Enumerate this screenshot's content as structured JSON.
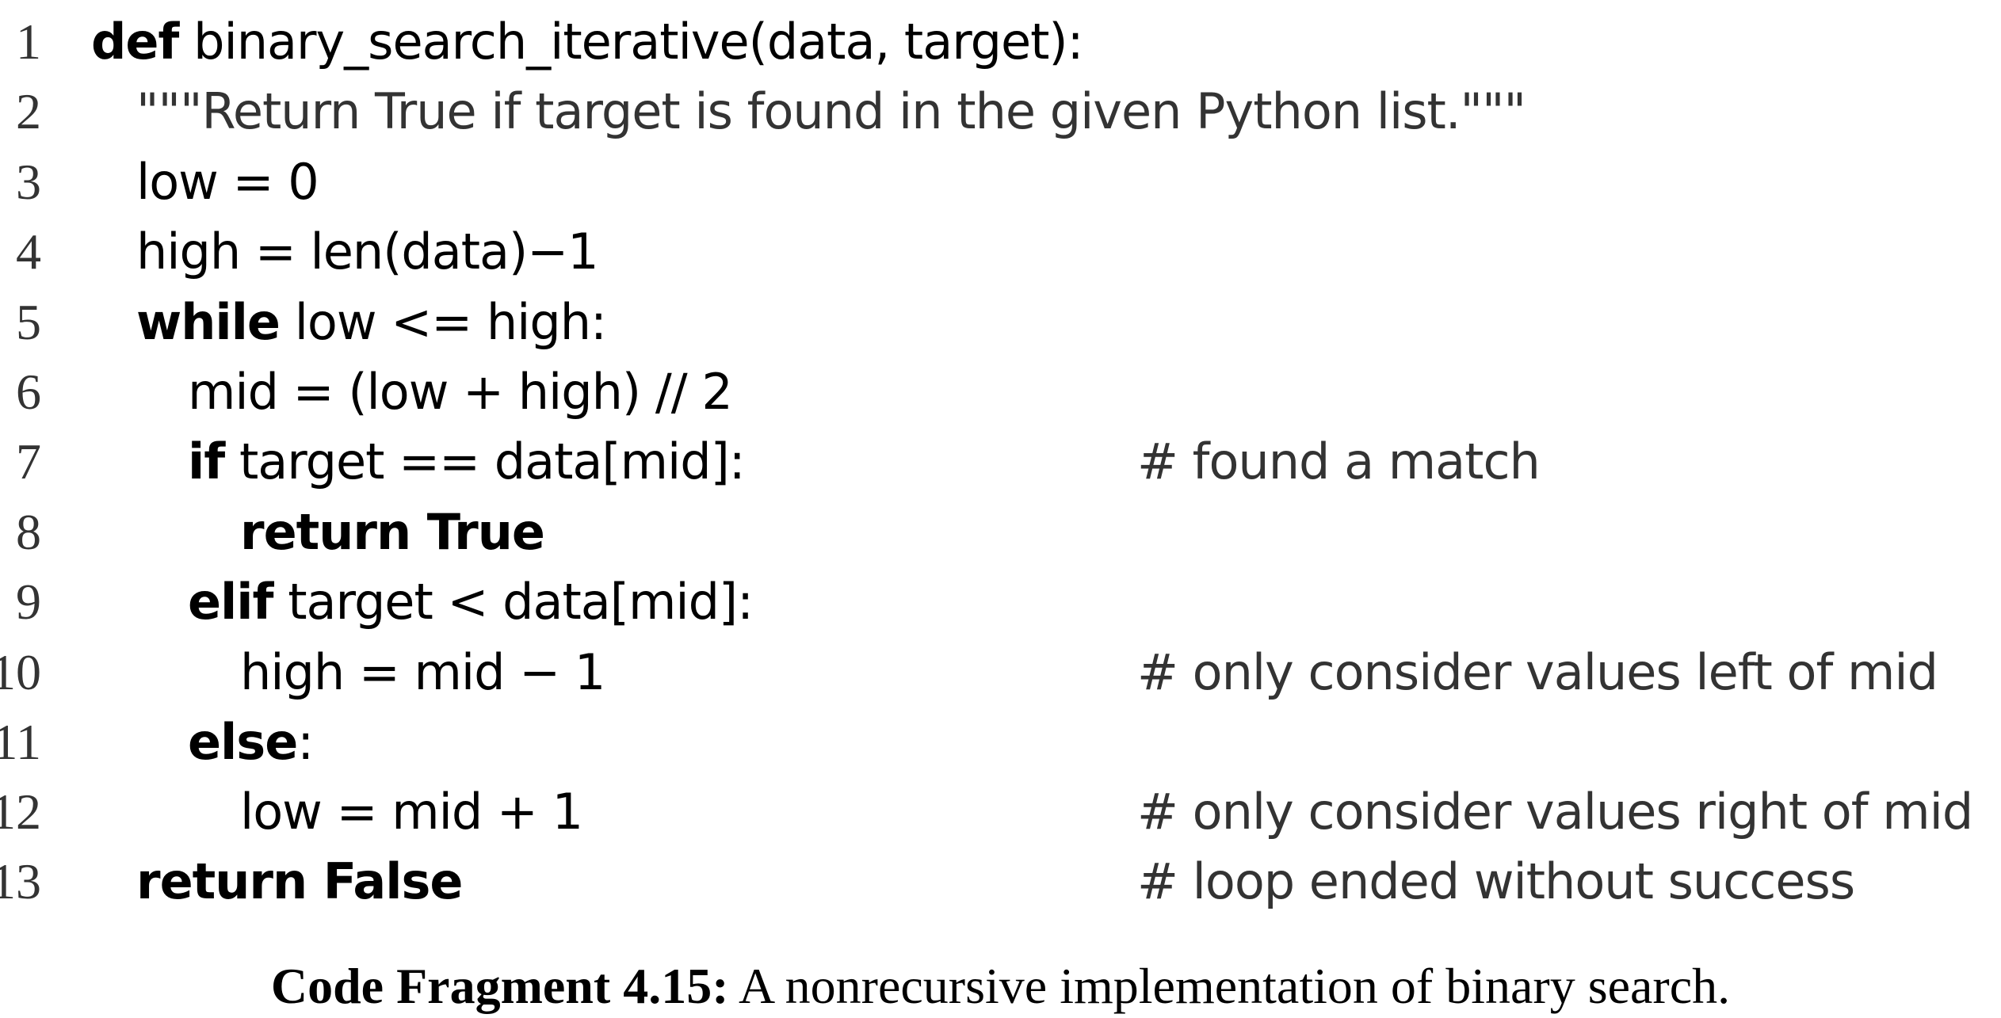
{
  "code": {
    "lines": [
      {
        "number": "1",
        "keyword": "def",
        "text": " binary_search_iterative(data, target):",
        "comment": ""
      },
      {
        "number": "2",
        "keyword": "",
        "text": "\"\"\"Return True if target is found in the given Python list.\"\"\"",
        "comment": ""
      },
      {
        "number": "3",
        "keyword": "",
        "text": "low = 0",
        "comment": ""
      },
      {
        "number": "4",
        "keyword": "",
        "text": "high = len(data)−1",
        "comment": ""
      },
      {
        "number": "5",
        "keyword": "while",
        "text": " low <= high:",
        "comment": ""
      },
      {
        "number": "6",
        "keyword": "",
        "text": "mid = (low + high) // 2",
        "comment": ""
      },
      {
        "number": "7",
        "keyword": "if",
        "text": " target == data[mid]:",
        "comment": "# found a match"
      },
      {
        "number": "8",
        "keyword": "return True",
        "text": "",
        "comment": ""
      },
      {
        "number": "9",
        "keyword": "elif",
        "text": " target < data[mid]:",
        "comment": ""
      },
      {
        "number": "10",
        "keyword": "",
        "text": "high = mid − 1",
        "comment": "# only consider values left of mid"
      },
      {
        "number": "11",
        "keyword": "else",
        "text": ":",
        "comment": ""
      },
      {
        "number": "12",
        "keyword": "",
        "text": "low = mid + 1",
        "comment": "# only consider values right of mid"
      },
      {
        "number": "13",
        "keyword": "return False",
        "text": "",
        "comment": "# loop ended without success"
      }
    ]
  },
  "caption": {
    "label": "Code Fragment 4.15:",
    "text": " A nonrecursive implementation of binary search."
  }
}
